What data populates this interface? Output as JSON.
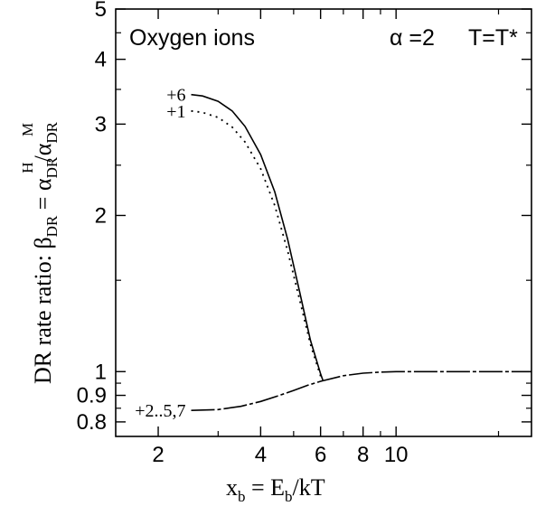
{
  "chart_data": {
    "type": "line",
    "title": "Oxygen  ions",
    "annotation_alpha": "α =2",
    "annotation_T": "T=T*",
    "ylabel": {
      "prefix": "DR rate ratio:  ",
      "beta": "β",
      "beta_sub": "DR",
      "eq": " = α",
      "num_sub": "DR",
      "num_sup": "H",
      "slash": "/α",
      "den_sub": "DR",
      "den_sup": "M"
    },
    "xlabel": {
      "x": "x",
      "x_sub": "b",
      "eq": "  = E",
      "e_sub": "b",
      "tail": "/kT"
    },
    "x_scale": "log",
    "y_scale": "log",
    "xlim": [
      1.5,
      25
    ],
    "ylim": [
      0.75,
      5
    ],
    "x_ticks": [
      2,
      4,
      6,
      8,
      10
    ],
    "x_minor_ticks": [
      3,
      5,
      7,
      9,
      20
    ],
    "y_ticks": [
      0.8,
      0.9,
      1,
      2,
      3,
      4,
      5
    ],
    "y_minor_ticks": [
      0.85,
      0.95,
      1.5,
      2.5,
      3.5,
      4.5
    ],
    "grid": false,
    "legend": "none",
    "series": [
      {
        "name": "+6",
        "style": "solid",
        "x": [
          2.5,
          2.7,
          3.0,
          3.3,
          3.6,
          4.0,
          4.4,
          4.8,
          5.2,
          5.6,
          6.0,
          6.1
        ],
        "y": [
          3.42,
          3.4,
          3.32,
          3.18,
          2.97,
          2.62,
          2.22,
          1.8,
          1.43,
          1.15,
          0.99,
          0.96
        ]
      },
      {
        "name": "+1",
        "style": "dotted",
        "x": [
          2.5,
          2.7,
          3.0,
          3.3,
          3.6,
          4.0,
          4.4,
          4.8,
          5.2,
          5.6,
          6.0,
          6.1
        ],
        "y": [
          3.18,
          3.16,
          3.09,
          2.96,
          2.77,
          2.46,
          2.09,
          1.71,
          1.38,
          1.13,
          0.98,
          0.96
        ]
      },
      {
        "name": "+2..5,7",
        "style": "dashed",
        "x": [
          2.5,
          3.0,
          3.5,
          4.0,
          4.5,
          5.0,
          5.5,
          6.0,
          7.0,
          8.0,
          9.0,
          10.0,
          12.0,
          15.0,
          20.0,
          25.0
        ],
        "y": [
          0.842,
          0.845,
          0.857,
          0.876,
          0.898,
          0.92,
          0.941,
          0.958,
          0.982,
          0.993,
          0.998,
          1.0,
          1.0,
          1.0,
          1.0,
          1.0
        ]
      }
    ]
  }
}
